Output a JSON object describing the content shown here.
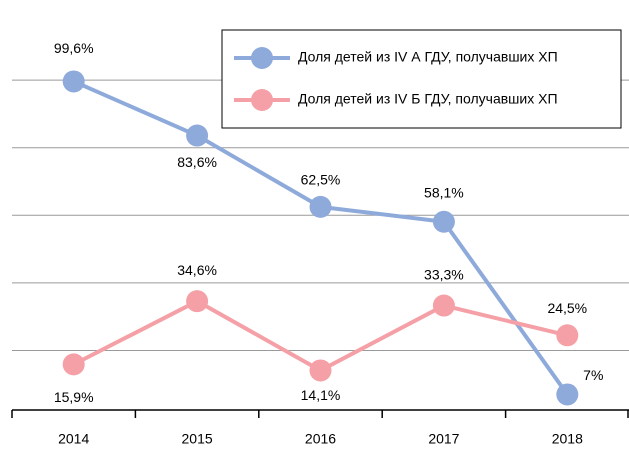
{
  "chart_data": {
    "type": "line",
    "categories": [
      "2014",
      "2015",
      "2016",
      "2017",
      "2018"
    ],
    "series": [
      {
        "name": "Доля детей из IV А ГДУ, получавших ХП",
        "color": "#8eaadb",
        "values": [
          99.6,
          83.6,
          62.5,
          58.1,
          7
        ],
        "value_labels": [
          "99,6%",
          "83,6%",
          "62,5%",
          "58,1%",
          "7%"
        ]
      },
      {
        "name": "Доля детей из IV Б ГДУ, получавших ХП",
        "color": "#f4a0a6",
        "values": [
          15.9,
          34.6,
          14.1,
          33.3,
          24.5
        ],
        "value_labels": [
          "15,9%",
          "34,6%",
          "14,1%",
          "33,3%",
          "24,5%"
        ]
      }
    ],
    "ylim": [
      2.4,
      120
    ],
    "yticks": [
      20,
      40,
      60,
      80,
      100
    ],
    "grid": true,
    "legend": "top-right"
  }
}
